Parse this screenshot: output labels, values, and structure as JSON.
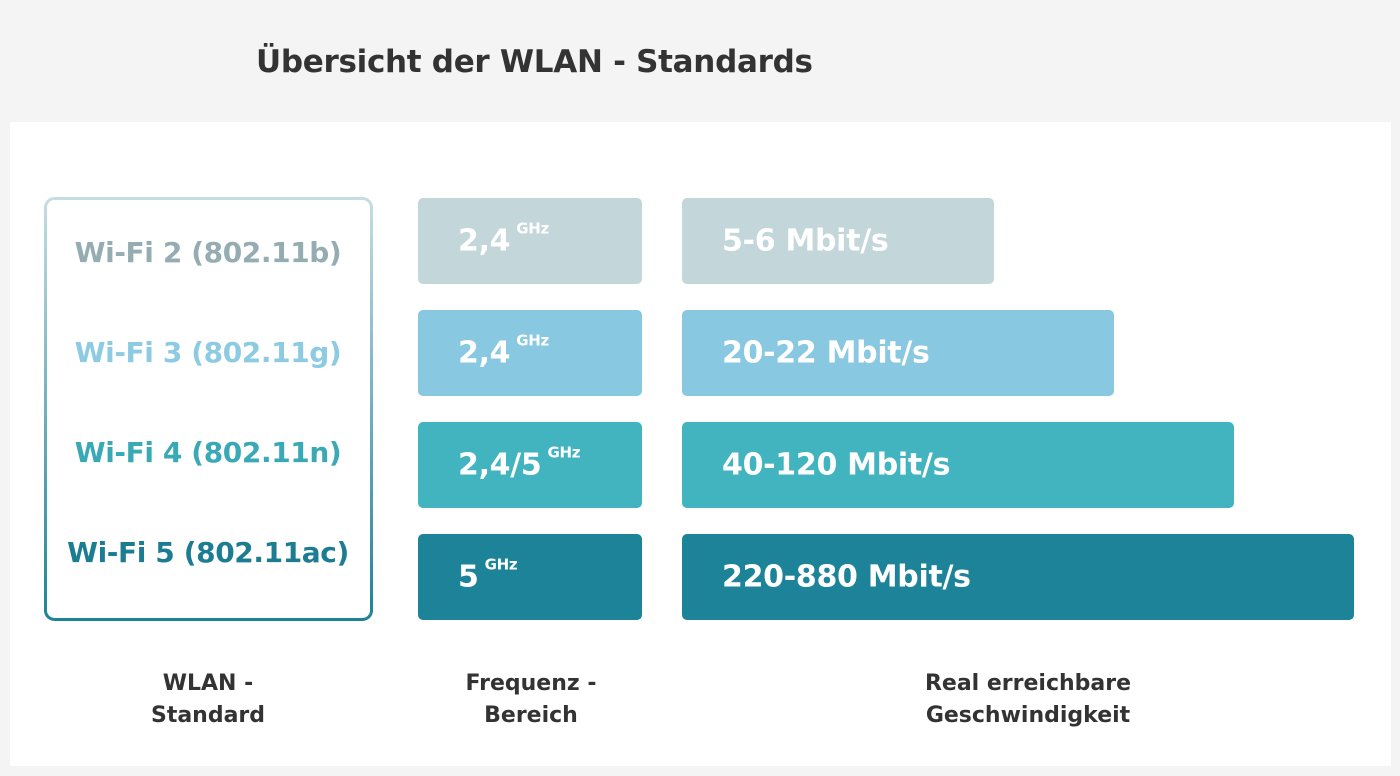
{
  "title": "Übersicht der WLAN - Standards",
  "chart_data": {
    "type": "table",
    "rows": [
      {
        "standard": "Wi-Fi 2 (802.11b)",
        "frequency": "2,4",
        "frequency_unit": "GHz",
        "speed": "5-6 Mbit/s",
        "speed_max_mbit": 6,
        "color": "#c3d6d9",
        "text_color": "#94acb2"
      },
      {
        "standard": "Wi-Fi 3 (802.11g)",
        "frequency": "2,4",
        "frequency_unit": "GHz",
        "speed": "20-22 Mbit/s",
        "speed_max_mbit": 22,
        "color": "#88c8e0",
        "text_color": "#8ccbe2"
      },
      {
        "standard": "Wi-Fi 4 (802.11n)",
        "frequency": "2,4/5",
        "frequency_unit": "GHz",
        "speed": "40-120 Mbit/s",
        "speed_max_mbit": 120,
        "color": "#42b4c0",
        "text_color": "#3aa9b6"
      },
      {
        "standard": "Wi-Fi 5 (802.11ac)",
        "frequency": "5",
        "frequency_unit": "GHz",
        "speed": "220-880 Mbit/s",
        "speed_max_mbit": 880,
        "color": "#1d8398",
        "text_color": "#1c7c91"
      }
    ],
    "column_labels": {
      "standard": [
        "WLAN -",
        "Standard"
      ],
      "frequency": [
        "Frequenz -",
        "Bereich"
      ],
      "speed": [
        "Real erreichbare",
        "Geschwindigkeit"
      ]
    },
    "colors": {
      "box_gradient_top": "#c5dde2",
      "box_gradient_bottom": "#1f8397",
      "title": "#333333",
      "background": "#f4f4f4",
      "panel": "#ffffff"
    }
  }
}
